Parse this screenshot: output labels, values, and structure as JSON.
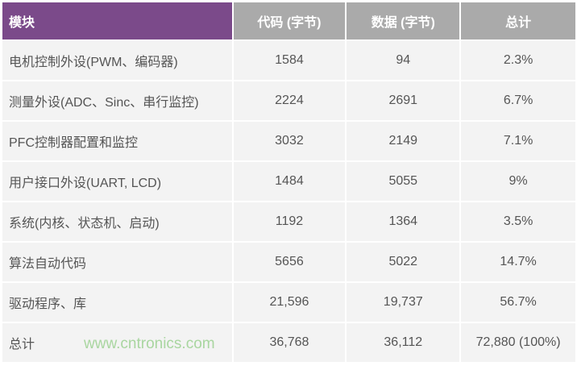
{
  "table": {
    "headers": [
      "模块",
      "代码 (字节)",
      "数据 (字节)",
      "总计"
    ],
    "rows": [
      [
        "电机控制外设(PWM、编码器)",
        "1584",
        "94",
        "2.3%"
      ],
      [
        "测量外设(ADC、Sinc、串行监控)",
        "2224",
        "2691",
        "6.7%"
      ],
      [
        "PFC控制器配置和监控",
        "3032",
        "2149",
        "7.1%"
      ],
      [
        "用户接口外设(UART, LCD)",
        "1484",
        "5055",
        "9%"
      ],
      [
        "系统(内核、状态机、启动)",
        "1192",
        "1364",
        "3.5%"
      ],
      [
        "算法自动代码",
        "5656",
        "5022",
        "14.7%"
      ],
      [
        "驱动程序、库",
        "21,596",
        "19,737",
        "56.7%"
      ],
      [
        "总计",
        "36,768",
        "36,112",
        "72,880 (100%)"
      ]
    ]
  },
  "watermark": "www.cntronics.com",
  "colors": {
    "header_first": "#7b4a8a",
    "header_other": "#aaaaaa",
    "cell": "#f3f3f3",
    "watermark": "#a9d6a0"
  }
}
